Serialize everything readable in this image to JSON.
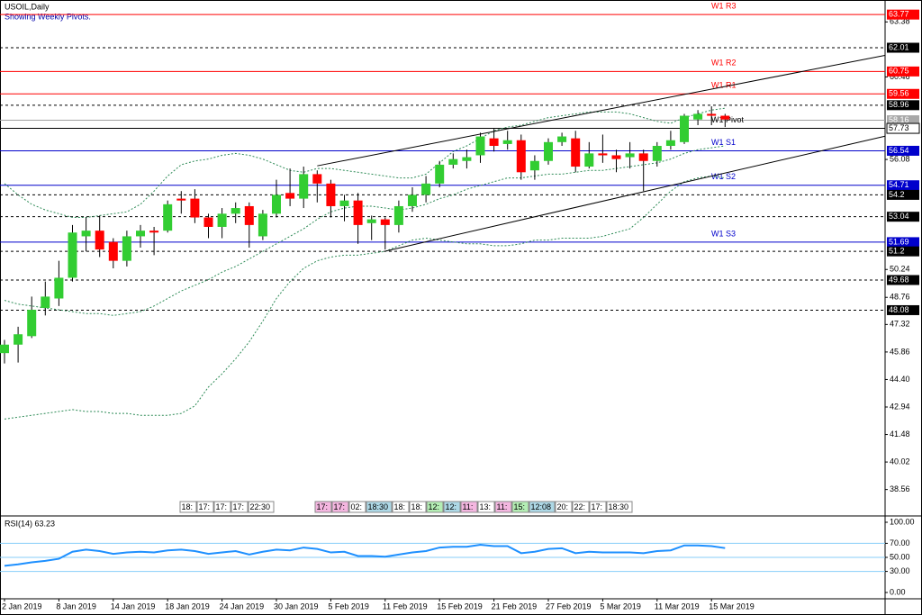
{
  "chart_data": [
    {
      "type": "candlestick",
      "title": "USOIL,Daily",
      "subtitle": "Showing Weekly Pivots.",
      "categories": [
        "2 Jan 2019",
        null,
        null,
        null,
        "8 Jan 2019",
        null,
        null,
        null,
        "14 Jan 2019",
        null,
        null,
        null,
        "18 Jan 2019",
        null,
        null,
        null,
        "24 Jan 2019",
        null,
        null,
        null,
        "30 Jan 2019",
        null,
        null,
        null,
        "5 Feb 2019",
        null,
        null,
        null,
        "11 Feb 2019",
        null,
        null,
        null,
        "15 Feb 2019",
        null,
        null,
        null,
        "21 Feb 2019",
        null,
        null,
        null,
        "27 Feb 2019",
        null,
        null,
        null,
        "5 Mar 2019",
        null,
        null,
        null,
        "11 Mar 2019",
        null,
        null,
        null,
        "15 Mar 2019",
        null
      ],
      "open": [
        45.8,
        46.25,
        46.7,
        48.2,
        48.7,
        49.8,
        52.0,
        52.3,
        51.7,
        50.7,
        52.0,
        52.3,
        52.3,
        54.0,
        54.0,
        53.0,
        52.5,
        53.2,
        53.6,
        52.0,
        53.2,
        54.3,
        54.0,
        55.3,
        54.8,
        53.6,
        53.9,
        52.7,
        52.9,
        52.6,
        53.6,
        54.2,
        54.8,
        55.8,
        56.0,
        56.3,
        57.2,
        56.9,
        57.1,
        55.5,
        56.0,
        57.0,
        57.2,
        55.7,
        56.4,
        56.3,
        56.2,
        56.4,
        56.0,
        56.8,
        57.0,
        58.2,
        58.5,
        58.4
      ],
      "high": [
        46.5,
        47.2,
        48.8,
        49.6,
        50.7,
        52.6,
        53.0,
        53.1,
        51.9,
        52.3,
        52.6,
        52.5,
        53.9,
        54.4,
        54.5,
        53.2,
        53.5,
        53.8,
        53.8,
        53.4,
        55.0,
        55.6,
        55.7,
        55.5,
        55.0,
        54.2,
        54.3,
        53.1,
        53.0,
        53.9,
        54.6,
        55.2,
        56.0,
        56.4,
        56.6,
        57.5,
        57.7,
        57.6,
        57.4,
        56.3,
        57.2,
        57.5,
        57.6,
        57.0,
        57.4,
        56.6,
        57.0,
        56.6,
        57.0,
        57.6,
        58.5,
        58.7,
        58.9,
        58.5
      ],
      "low": [
        45.25,
        45.3,
        46.6,
        47.8,
        48.3,
        49.6,
        51.2,
        50.9,
        50.3,
        50.4,
        51.4,
        51.0,
        52.2,
        53.2,
        52.7,
        51.9,
        51.9,
        52.7,
        51.4,
        51.8,
        53.0,
        53.6,
        53.5,
        53.8,
        53.0,
        52.8,
        51.6,
        51.8,
        51.3,
        52.2,
        53.3,
        53.8,
        54.6,
        55.6,
        55.6,
        55.9,
        56.5,
        56.6,
        55.0,
        55.0,
        55.8,
        56.8,
        55.4,
        55.6,
        55.9,
        55.4,
        55.6,
        54.4,
        55.7,
        56.6,
        56.9,
        57.9,
        57.9,
        57.8
      ],
      "close": [
        46.25,
        46.8,
        48.1,
        48.8,
        49.8,
        52.2,
        52.3,
        51.3,
        50.7,
        52.0,
        52.3,
        52.2,
        53.7,
        53.9,
        53.0,
        52.5,
        53.2,
        53.5,
        52.6,
        53.2,
        54.2,
        54.0,
        55.3,
        54.8,
        53.6,
        53.9,
        52.6,
        52.9,
        52.6,
        53.6,
        54.2,
        54.8,
        55.8,
        56.1,
        56.2,
        57.3,
        56.8,
        57.1,
        55.4,
        56.0,
        57.0,
        57.3,
        55.7,
        56.4,
        56.3,
        56.1,
        56.4,
        56.0,
        56.8,
        57.1,
        58.4,
        58.5,
        58.4,
        58.2
      ],
      "up_color": "#32cd32",
      "down_color": "#ff0000",
      "wick_color": "#000000",
      "ylim": [
        37.3,
        64.4
      ],
      "yticks": [
        63.38,
        60.46,
        56.08,
        50.24,
        48.76,
        47.32,
        45.86,
        {
          "value": 44.4,
          "label": "44.40"
        },
        42.94,
        41.48,
        40.02,
        38.56
      ],
      "band_color": "#2e8b57",
      "bands": [
        {
          "values": [
            54.8,
            54.2,
            53.7,
            53.4,
            53.2,
            53.0,
            53.0,
            53.1,
            53.2,
            53.3,
            53.7,
            54.4,
            55.2,
            55.8,
            56.0,
            56.1,
            56.3,
            56.4,
            56.3,
            56.1,
            55.8,
            55.5,
            55.4,
            55.6,
            55.6,
            55.5,
            55.4,
            55.3,
            55.2,
            55.1,
            55.1,
            55.3,
            55.9,
            56.5,
            56.8,
            57.2,
            57.6,
            57.8,
            57.9,
            58.1,
            58.3,
            58.4,
            58.5,
            58.6,
            58.6,
            58.6,
            58.5,
            58.3,
            58.1,
            58.0,
            58.3,
            58.5,
            58.7,
            58.8
          ]
        },
        {
          "values": [
            48.6,
            48.4,
            48.3,
            48.2,
            48.1,
            48.0,
            47.9,
            47.9,
            47.8,
            47.9,
            48.0,
            48.3,
            48.7,
            49.1,
            49.4,
            49.7,
            50.1,
            50.4,
            50.8,
            51.2,
            51.6,
            52.0,
            52.4,
            52.9,
            53.3,
            53.5,
            53.6,
            53.6,
            53.5,
            53.4,
            53.5,
            53.7,
            54.0,
            54.2,
            54.5,
            54.7,
            54.9,
            55.1,
            55.1,
            55.2,
            55.3,
            55.3,
            55.4,
            55.5,
            55.5,
            55.6,
            55.7,
            55.8,
            55.9,
            56.1,
            56.4,
            56.6,
            56.7,
            56.8
          ]
        },
        {
          "values": [
            42.3,
            42.4,
            42.5,
            42.6,
            42.7,
            42.8,
            42.7,
            42.7,
            42.6,
            42.6,
            42.5,
            42.5,
            42.5,
            42.6,
            43.0,
            44.0,
            44.7,
            45.5,
            46.4,
            47.5,
            48.7,
            49.6,
            50.3,
            50.7,
            50.9,
            51.0,
            51.0,
            51.1,
            51.2,
            51.5,
            51.8,
            51.9,
            51.8,
            51.7,
            51.6,
            51.6,
            51.5,
            51.5,
            51.6,
            51.8,
            51.8,
            51.9,
            51.9,
            51.9,
            52.0,
            52.2,
            52.4,
            53.0,
            53.7,
            54.4,
            54.9,
            55.1,
            55.2,
            55.1
          ]
        }
      ],
      "trend_color": "#000000",
      "trend_lines": [
        {
          "x": [
            23,
            64.8
          ],
          "y": [
            55.74,
            61.61
          ]
        },
        {
          "x": [
            28,
            64.8
          ],
          "y": [
            51.21,
            57.32
          ]
        }
      ],
      "levels": [
        {
          "value": 63.77,
          "name": "W1 R3",
          "color": "#ff0000",
          "style": "solid",
          "box": "#ff0000",
          "text_color": "#ffffff"
        },
        {
          "value": 62.01,
          "color": "#000000",
          "style": "dashed",
          "box": "#000000",
          "text_color": "#ffffff"
        },
        {
          "value": 60.75,
          "name": "W1 R2",
          "color": "#ff0000",
          "style": "solid",
          "box": "#ff0000",
          "text_color": "#ffffff"
        },
        {
          "value": 59.56,
          "name": "W1 R1",
          "color": "#ff0000",
          "style": "solid",
          "box": "#ff0000",
          "text_color": "#ffffff"
        },
        {
          "value": 58.96,
          "color": "#000000",
          "style": "dashed",
          "box": "#000000",
          "text_color": "#ffffff"
        },
        {
          "value": 58.16,
          "color": "#a0a0a0",
          "style": "solid",
          "box": "#a8a8a8",
          "text_color": "#ffffff"
        },
        {
          "value": 57.73,
          "name": "W1 Pivot",
          "color": "#000000",
          "style": "solid",
          "box": "#ffffff",
          "text_color": "#000000"
        },
        {
          "value": 56.54,
          "name": "W1 S1",
          "color": "#0000cc",
          "style": "solid",
          "box": "#0000cc",
          "text_color": "#ffffff"
        },
        {
          "value": 54.71,
          "name": "W1 S2",
          "color": "#0000cc",
          "style": "solid",
          "box": "#0000cc",
          "text_color": "#ffffff"
        },
        {
          "value": 54.2,
          "color": "#000000",
          "style": "dashed",
          "box": "#000000",
          "text_color": "#ffffff"
        },
        {
          "value": 53.04,
          "color": "#000000",
          "style": "dashed",
          "box": "#000000",
          "text_color": "#ffffff"
        },
        {
          "value": 51.69,
          "name": "W1 S3",
          "color": "#0000cc",
          "style": "solid",
          "box": "#0000cc",
          "text_color": "#ffffff"
        },
        {
          "value": 51.2,
          "color": "#000000",
          "style": "dashed",
          "box": "#000000",
          "text_color": "#ffffff"
        },
        {
          "value": 49.68,
          "color": "#000000",
          "style": "dashed",
          "box": "#000000",
          "text_color": "#ffffff"
        },
        {
          "value": 48.08,
          "color": "#000000",
          "style": "dashed",
          "box": "#000000",
          "text_color": "#ffffff"
        }
      ],
      "events": [
        [
          {
            "text": "18:",
            "color": "#ffffff"
          },
          {
            "text": "17:",
            "color": "#ffffff"
          },
          {
            "text": "17:",
            "color": "#ffffff"
          },
          {
            "text": "17:",
            "color": "#ffffff"
          },
          {
            "text": "22:30",
            "color": "#ffffff"
          }
        ],
        [
          {
            "text": "17:",
            "color": "#f4b6e0"
          },
          {
            "text": "17:",
            "color": "#f4b6e0"
          },
          {
            "text": "02:",
            "color": "#ffffff"
          },
          {
            "text": "18:30",
            "color": "#add8e6"
          },
          {
            "text": "18:",
            "color": "#ffffff"
          },
          {
            "text": "18:",
            "color": "#ffffff"
          },
          {
            "text": "12:",
            "color": "#b4eeb4"
          },
          {
            "text": "12:",
            "color": "#add8e6"
          },
          {
            "text": "11:",
            "color": "#f4b6e0"
          },
          {
            "text": "13:",
            "color": "#ffffff"
          },
          {
            "text": "11:",
            "color": "#f4b6e0"
          },
          {
            "text": "15:",
            "color": "#b4eeb4"
          },
          {
            "text": "12:08",
            "color": "#add8e6"
          },
          {
            "text": "20:",
            "color": "#ffffff"
          },
          {
            "text": "22:",
            "color": "#ffffff"
          },
          {
            "text": "17:",
            "color": "#ffffff"
          },
          {
            "text": "18:30",
            "color": "#ffffff"
          }
        ]
      ]
    },
    {
      "type": "line",
      "title": "RSI(14) 63.23",
      "values": [
        38,
        40,
        43,
        45,
        48,
        58,
        61,
        59,
        55,
        57,
        58,
        57,
        60,
        61,
        59,
        55,
        57,
        59,
        54,
        58,
        61,
        60,
        64,
        62,
        57,
        58,
        52,
        52,
        51,
        54,
        57,
        59,
        64,
        65,
        65,
        68,
        66,
        66,
        56,
        58,
        62,
        63,
        56,
        58,
        57,
        57,
        57,
        56,
        59,
        60,
        67,
        67,
        66,
        63.23
      ],
      "color": "#1e90ff",
      "ylim": [
        0,
        100
      ],
      "yticks": [
        {
          "value": 100,
          "label": "100.00"
        },
        {
          "value": 70,
          "label": "70.00"
        },
        {
          "value": 50,
          "label": "50.00"
        },
        {
          "value": 30,
          "label": "30.00"
        },
        {
          "value": 0,
          "label": "0.00"
        }
      ],
      "levels": [
        70,
        50,
        30
      ],
      "level_color": "#87cefa"
    }
  ]
}
